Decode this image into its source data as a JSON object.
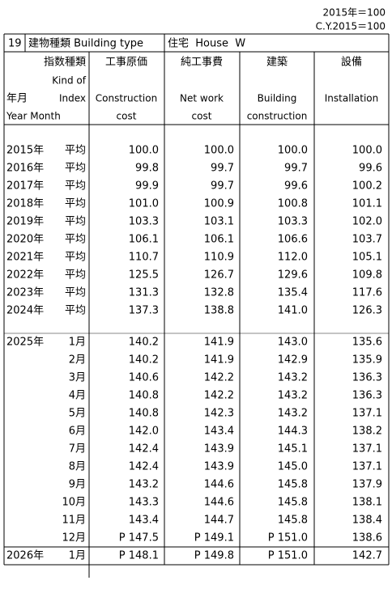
{
  "notes": [
    "2015年＝100",
    "C.Y.2015＝100"
  ],
  "header": {
    "number": "19",
    "building_type_label": "建物種類 Building type",
    "building_type": "住宅  House  W"
  },
  "columns": {
    "kind_ja": "指数種類",
    "kind_en1": "Kind of",
    "kind_en2": "Index",
    "ym_ja": "年月",
    "ym_en": "Year Month",
    "items": [
      {
        "ja": "工事原価",
        "en1": "Construction",
        "en2": "cost"
      },
      {
        "ja": "純工事費",
        "en1": "Net work",
        "en2": "cost"
      },
      {
        "ja": "建築",
        "en1": "Building",
        "en2": "construction"
      },
      {
        "ja": "設備",
        "en1": "Installation"
      }
    ]
  },
  "annual": [
    {
      "year": "2015年",
      "label": "平均",
      "values": [
        "100.0",
        "100.0",
        "100.0",
        "100.0"
      ]
    },
    {
      "year": "2016年",
      "label": "平均",
      "values": [
        "99.8",
        "99.7",
        "99.7",
        "99.6"
      ]
    },
    {
      "year": "2017年",
      "label": "平均",
      "values": [
        "99.9",
        "99.7",
        "99.6",
        "100.2"
      ]
    },
    {
      "year": "2018年",
      "label": "平均",
      "values": [
        "101.0",
        "100.9",
        "100.8",
        "101.1"
      ]
    },
    {
      "year": "2019年",
      "label": "平均",
      "values": [
        "103.3",
        "103.1",
        "103.3",
        "102.0"
      ]
    },
    {
      "year": "2020年",
      "label": "平均",
      "values": [
        "106.1",
        "106.1",
        "106.6",
        "103.7"
      ]
    },
    {
      "year": "2021年",
      "label": "平均",
      "values": [
        "110.7",
        "110.9",
        "112.0",
        "105.1"
      ]
    },
    {
      "year": "2022年",
      "label": "平均",
      "values": [
        "125.5",
        "126.7",
        "129.6",
        "109.8"
      ]
    },
    {
      "year": "2023年",
      "label": "平均",
      "values": [
        "131.3",
        "132.8",
        "135.4",
        "117.6"
      ]
    },
    {
      "year": "2024年",
      "label": "平均",
      "values": [
        "137.3",
        "138.8",
        "141.0",
        "126.3"
      ]
    }
  ],
  "monthly": [
    {
      "year": "2025年",
      "month": "1月",
      "values": [
        "140.2",
        "141.9",
        "143.0",
        "135.6"
      ]
    },
    {
      "month": "2月",
      "values": [
        "140.2",
        "141.9",
        "142.9",
        "135.9"
      ]
    },
    {
      "month": "3月",
      "values": [
        "140.6",
        "142.2",
        "143.2",
        "136.3"
      ]
    },
    {
      "month": "4月",
      "values": [
        "140.8",
        "142.2",
        "143.2",
        "136.3"
      ]
    },
    {
      "month": "5月",
      "values": [
        "140.8",
        "142.3",
        "143.2",
        "137.1"
      ]
    },
    {
      "month": "6月",
      "values": [
        "142.0",
        "143.4",
        "144.3",
        "138.2"
      ]
    },
    {
      "month": "7月",
      "values": [
        "142.4",
        "143.9",
        "145.1",
        "137.1"
      ]
    },
    {
      "month": "8月",
      "values": [
        "142.4",
        "143.9",
        "145.0",
        "137.1"
      ]
    },
    {
      "month": "9月",
      "values": [
        "143.2",
        "144.6",
        "145.8",
        "137.9"
      ]
    },
    {
      "month": "10月",
      "values": [
        "143.3",
        "144.6",
        "145.8",
        "138.1"
      ]
    },
    {
      "month": "11月",
      "values": [
        "143.4",
        "144.7",
        "145.8",
        "138.4"
      ]
    },
    {
      "month": "12月",
      "values": [
        "P 147.5",
        "P 149.1",
        "P 151.0",
        "138.6"
      ]
    },
    {
      "year": "2026年",
      "month": "1月",
      "values": [
        "P 148.1",
        "P 149.8",
        "P 151.0",
        "142.7"
      ]
    }
  ]
}
